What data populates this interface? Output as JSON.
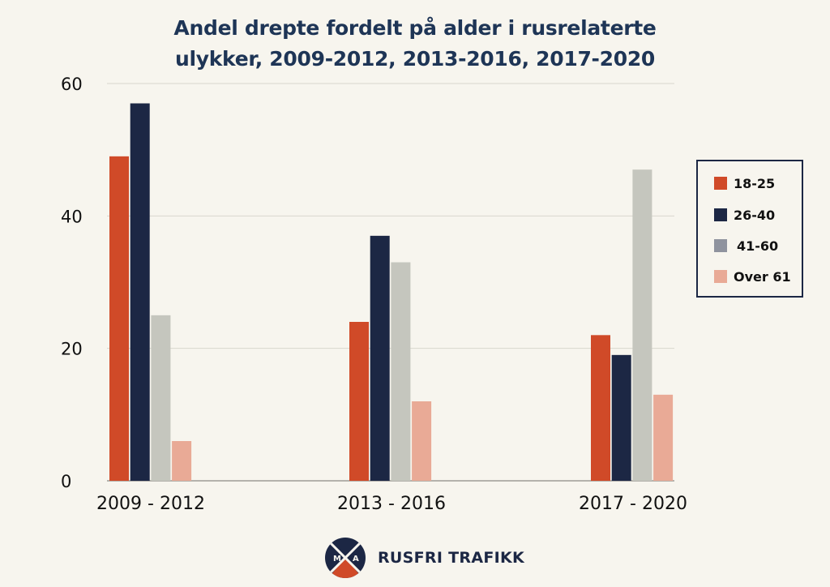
{
  "chart_data": {
    "type": "bar",
    "title_lines": [
      "Andel drepte fordelt på alder i rusrelaterte",
      "ulykker, 2009-2012, 2013-2016, 2017-2020"
    ],
    "categories": [
      "2009 - 2012",
      "2013 - 2016",
      "2017 - 2020"
    ],
    "series": [
      {
        "name": "18-25",
        "color": "#d04a28",
        "values": [
          49,
          24,
          22
        ]
      },
      {
        "name": "26-40",
        "color": "#1c2744",
        "values": [
          57,
          37,
          19
        ]
      },
      {
        "name": "41-60",
        "color": "#c5c6be",
        "legend_color": "#8f939e",
        "values": [
          25,
          33,
          47
        ]
      },
      {
        "name": "Over 61",
        "color": "#e9aa96",
        "values": [
          6,
          12,
          13
        ]
      }
    ],
    "yticks": [
      0,
      20,
      40,
      60
    ],
    "ylim": [
      0,
      60
    ],
    "grid": true,
    "legend_position": "right"
  },
  "footer": {
    "logo_icon": "rusfri-trafikk-logo-icon",
    "logo_letters": [
      "M",
      "A"
    ],
    "brand": "RUSFRI TRAFIKK"
  }
}
